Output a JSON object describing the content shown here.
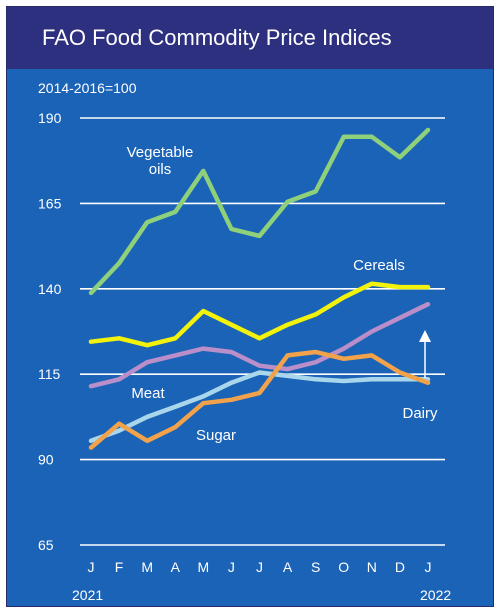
{
  "chart_data": {
    "type": "line",
    "title": "FAO Food Commodity Price Indices",
    "ylabel": "2014-2016=100",
    "ylim": [
      65,
      190
    ],
    "yticks": [
      65,
      90,
      115,
      140,
      165,
      190
    ],
    "categories": [
      "J",
      "F",
      "M",
      "A",
      "M",
      "J",
      "J",
      "A",
      "S",
      "O",
      "N",
      "D",
      "J"
    ],
    "year_labels": {
      "start": "2021",
      "end": "2022"
    },
    "grid": true,
    "series": [
      {
        "name": "Vegetable oils",
        "color": "#8fd07a",
        "values": [
          138.8,
          147.5,
          159.5,
          162.5,
          174.5,
          157.5,
          155.5,
          165.5,
          168.5,
          184.5,
          184.5,
          178.5,
          186.5
        ]
      },
      {
        "name": "Cereals",
        "color": "#f2f20a",
        "values": [
          124.5,
          125.5,
          123.5,
          125.5,
          133.5,
          129.5,
          125.5,
          129.5,
          132.5,
          137.5,
          141.5,
          140.5,
          140.5
        ]
      },
      {
        "name": "Meat",
        "color": "#b98ec9",
        "values": [
          111.5,
          113.5,
          118.5,
          120.5,
          122.5,
          121.5,
          117.5,
          116.5,
          118.5,
          122.5,
          127.5,
          131.5,
          135.5
        ]
      },
      {
        "name": "Sugar",
        "color": "#f1a24b",
        "values": [
          93.5,
          100.5,
          95.5,
          99.5,
          106.5,
          107.5,
          109.5,
          120.5,
          121.5,
          119.5,
          120.5,
          115.5,
          112.5
        ]
      },
      {
        "name": "Dairy",
        "color": "#a9d6ea",
        "values": [
          95.5,
          98.5,
          102.5,
          105.5,
          108.5,
          112.5,
          115.5,
          114.5,
          113.5,
          113.0,
          113.5,
          113.5,
          113.5
        ]
      }
    ]
  }
}
